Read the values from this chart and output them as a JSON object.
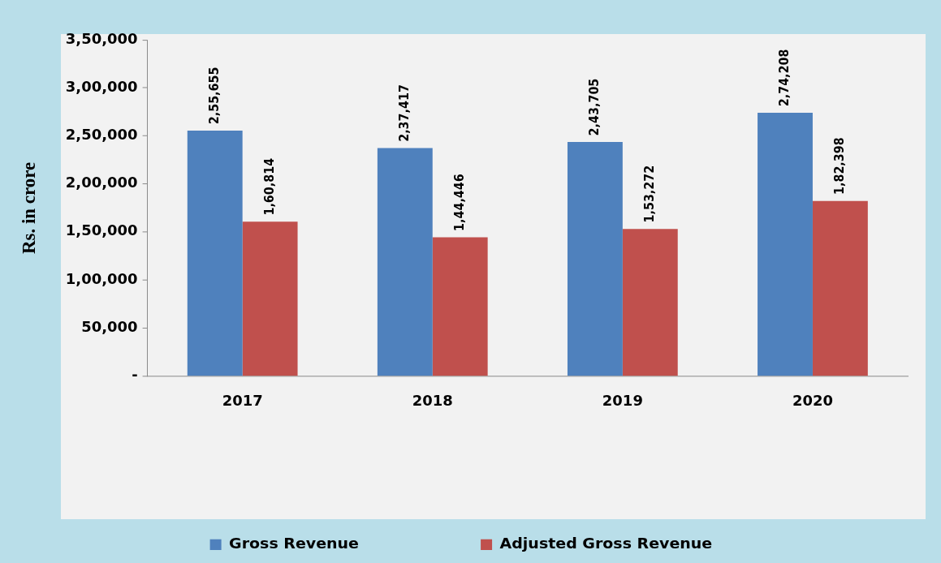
{
  "chart_data": {
    "type": "bar",
    "ylabel": "Rs. in crore",
    "categories": [
      "2017",
      "2018",
      "2019",
      "2020"
    ],
    "series": [
      {
        "name": "Gross Revenue",
        "color": "#4f81bd",
        "values": [
          255655,
          237417,
          243705,
          274208
        ],
        "value_labels": [
          "2,55,655",
          "2,37,417",
          "2,43,705",
          "2,74,208"
        ]
      },
      {
        "name": "Adjusted Gross Revenue",
        "color": "#c0504d",
        "values": [
          160814,
          144446,
          153272,
          182398
        ],
        "value_labels": [
          "1,60,814",
          "1,44,446",
          "1,53,272",
          "1,82,398"
        ]
      }
    ],
    "ylim": [
      0,
      350000
    ],
    "yticks": [
      {
        "value": 0,
        "label": "-"
      },
      {
        "value": 50000,
        "label": "50,000"
      },
      {
        "value": 100000,
        "label": "1,00,000"
      },
      {
        "value": 150000,
        "label": "1,50,000"
      },
      {
        "value": 200000,
        "label": "2,00,000"
      },
      {
        "value": 250000,
        "label": "2,50,000"
      },
      {
        "value": 300000,
        "label": "3,00,000"
      },
      {
        "value": 350000,
        "label": "3,50,000"
      }
    ],
    "legend": "bottom",
    "grid": false
  }
}
